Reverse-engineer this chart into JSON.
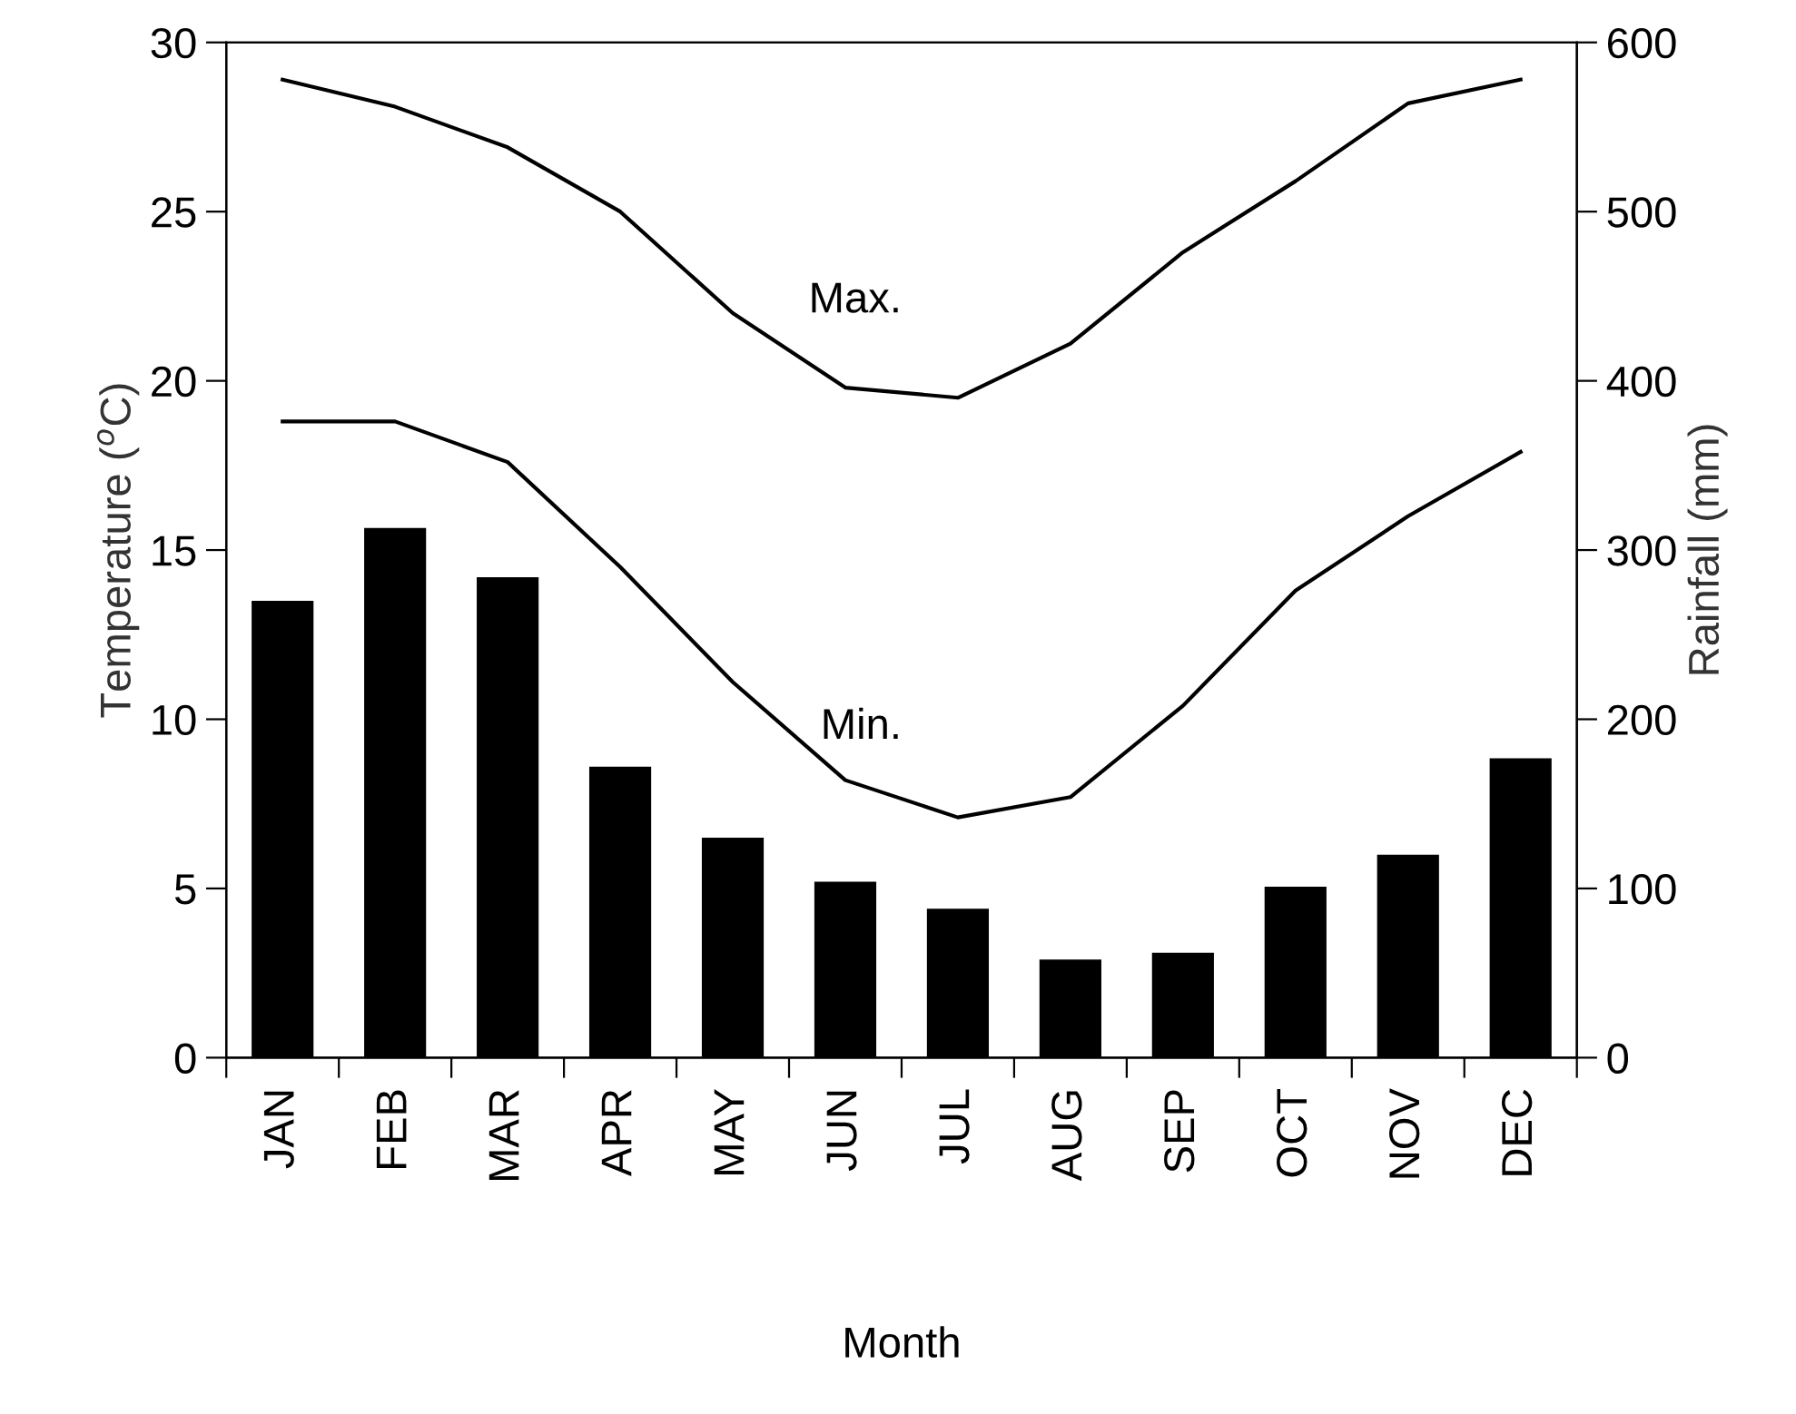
{
  "chart_data": {
    "type": "line",
    "xlabel": "Month",
    "ylabel": "Temperature ($^{o}$C)",
    "y2label": "Rainfall (mm)",
    "categories": [
      "JAN",
      "FEB",
      "MAR",
      "APR",
      "MAY",
      "JUN",
      "JUL",
      "AUG",
      "SEP",
      "OCT",
      "NOV",
      "DEC"
    ],
    "ylim": [
      0,
      30
    ],
    "yticks": [
      0,
      5,
      10,
      15,
      20,
      25,
      30
    ],
    "y2lim": [
      0,
      600
    ],
    "y2ticks": [
      0,
      100,
      200,
      300,
      400,
      500,
      600
    ],
    "grid": false,
    "legend": false,
    "marker": "none",
    "line_style": "solid",
    "series": [
      {
        "type": "bar",
        "axis": "y2",
        "color": "#000000",
        "values": [
          270,
          313,
          284,
          172,
          130,
          104,
          88,
          58,
          62,
          101,
          120,
          177
        ]
      },
      {
        "color": "#000000",
        "values": [
          28.9,
          28.1,
          26.9,
          25.0,
          22.0,
          19.8,
          19.5,
          21.1,
          23.8,
          25.9,
          28.2,
          28.9
        ]
      },
      {
        "color": "#000000",
        "values": [
          18.8,
          18.8,
          17.6,
          14.5,
          11.1,
          8.2,
          7.1,
          7.7,
          10.4,
          13.8,
          16.0,
          17.9
        ]
      }
    ],
    "annotations": [
      "Max.",
      "Min."
    ]
  }
}
